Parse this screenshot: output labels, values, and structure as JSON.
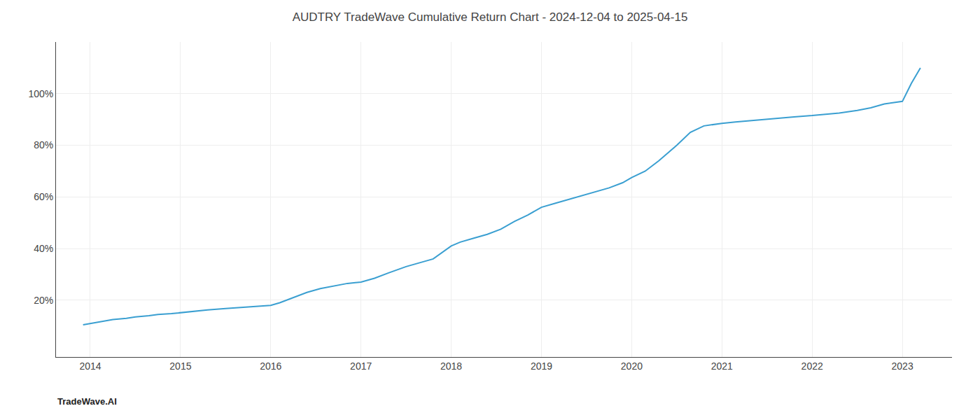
{
  "chart_data": {
    "type": "line",
    "title": "AUDTRY TradeWave Cumulative Return Chart - 2024-12-04 to 2025-04-15",
    "annotations": [
      "TradeWave.AI"
    ],
    "color": "#3a9fd1",
    "grid": true,
    "x": [
      2013.92,
      2014.0,
      2014.1,
      2014.25,
      2014.4,
      2014.5,
      2014.65,
      2014.75,
      2014.9,
      2015.0,
      2015.15,
      2015.3,
      2015.5,
      2015.65,
      2015.75,
      2015.9,
      2016.0,
      2016.1,
      2016.25,
      2016.4,
      2016.55,
      2016.7,
      2016.85,
      2017.0,
      2017.15,
      2017.3,
      2017.5,
      2017.65,
      2017.8,
      2018.0,
      2018.1,
      2018.25,
      2018.4,
      2018.55,
      2018.7,
      2018.85,
      2019.0,
      2019.15,
      2019.3,
      2019.45,
      2019.6,
      2019.75,
      2019.9,
      2020.0,
      2020.15,
      2020.3,
      2020.5,
      2020.65,
      2020.8,
      2021.0,
      2021.15,
      2021.3,
      2021.5,
      2021.65,
      2021.8,
      2022.0,
      2022.15,
      2022.3,
      2022.5,
      2022.65,
      2022.8,
      2023.0,
      2023.1,
      2023.2
    ],
    "values": [
      10.5,
      11.0,
      11.5,
      12.5,
      13.0,
      13.5,
      14.0,
      14.5,
      14.8,
      15.2,
      15.8,
      16.2,
      16.8,
      17.2,
      17.5,
      17.8,
      18.0,
      19.0,
      21.0,
      23.0,
      24.5,
      25.5,
      26.5,
      27.0,
      28.5,
      30.5,
      33.0,
      34.5,
      36.0,
      41.0,
      42.5,
      44.0,
      45.5,
      47.5,
      50.5,
      53.0,
      56.0,
      57.5,
      59.0,
      60.5,
      62.0,
      63.5,
      65.5,
      67.5,
      70.0,
      74.0,
      80.0,
      85.0,
      87.5,
      88.5,
      89.0,
      89.5,
      90.0,
      90.5,
      91.0,
      91.5,
      92.0,
      92.5,
      93.5,
      94.5,
      96.0,
      97.0,
      104.0,
      110.0
    ],
    "xlim": [
      2013.62,
      2023.55
    ],
    "ylim": [
      -2,
      120
    ],
    "xticks": [
      2014,
      2015,
      2016,
      2017,
      2018,
      2019,
      2020,
      2021,
      2022,
      2023
    ],
    "yticks": [
      {
        "value": 20,
        "label": "20%"
      },
      {
        "value": 40,
        "label": "40%"
      },
      {
        "value": 60,
        "label": "60%"
      },
      {
        "value": 80,
        "label": "80%"
      },
      {
        "value": 100,
        "label": "100%"
      }
    ]
  }
}
